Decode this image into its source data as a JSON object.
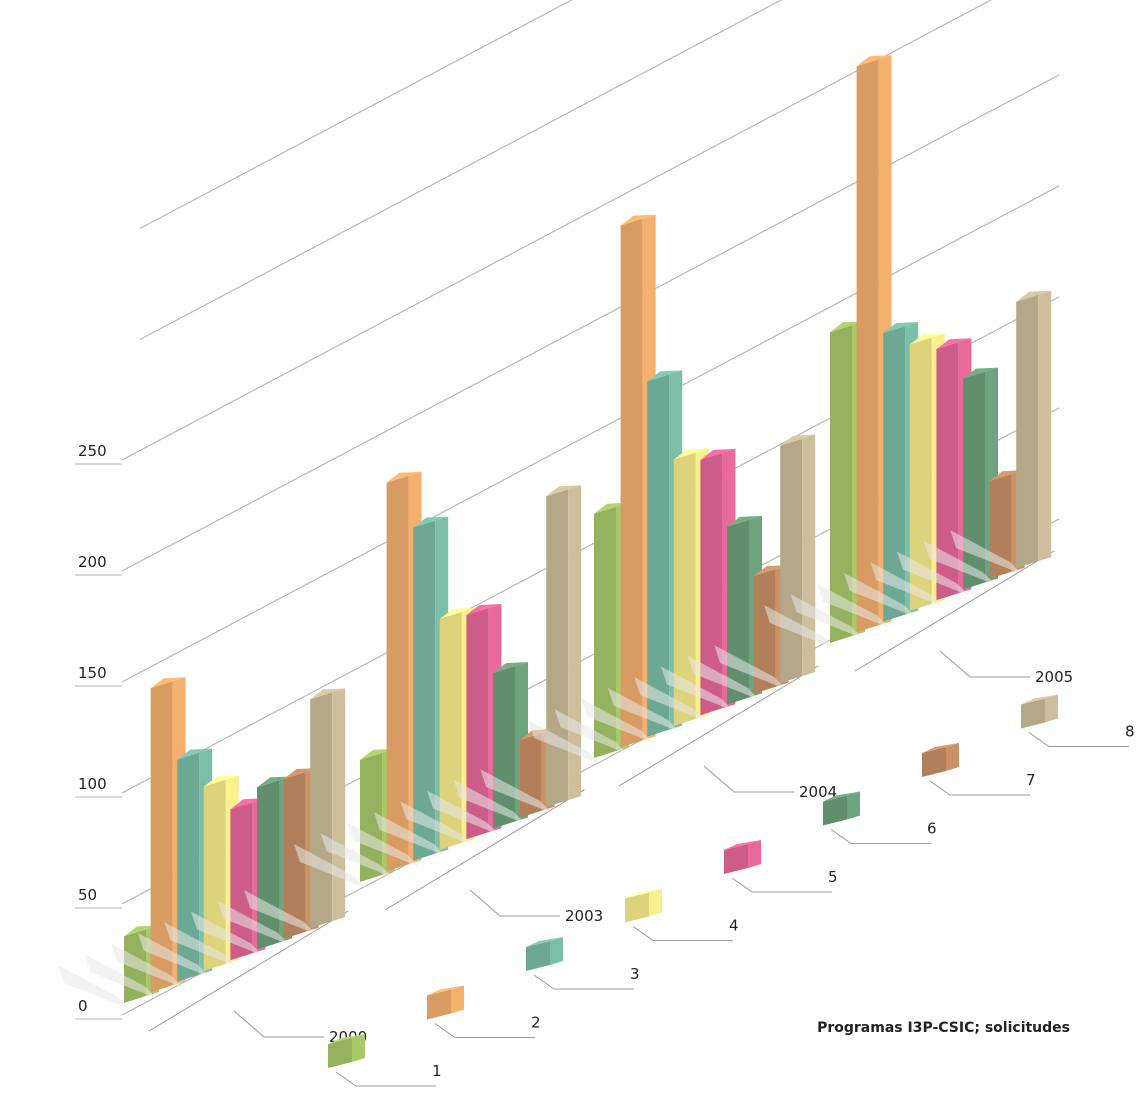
{
  "chart_data": {
    "type": "bar",
    "title": "Programas I3P-CSIC; solicitudes",
    "categories": [
      "2000",
      "2003",
      "2004",
      "2005"
    ],
    "y_ticks": [
      "0",
      "50",
      "100",
      "150",
      "200",
      "250"
    ],
    "ylim": [
      0,
      300
    ],
    "grid": true,
    "legend_position": "bottom-right",
    "series": [
      {
        "name": "1",
        "color": "#a8c96a",
        "values": [
          30,
          55,
          110,
          140
        ]
      },
      {
        "name": "2",
        "color": "#f5b06e",
        "values": [
          137,
          175,
          235,
          255
        ]
      },
      {
        "name": "3",
        "color": "#7cbfa8",
        "values": [
          100,
          150,
          160,
          130
        ]
      },
      {
        "name": "4",
        "color": "#fbf08e",
        "values": [
          83,
          104,
          120,
          120
        ]
      },
      {
        "name": "5",
        "color": "#e9699a",
        "values": [
          68,
          101,
          115,
          113
        ]
      },
      {
        "name": "6",
        "color": "#6ea37d",
        "values": [
          73,
          70,
          80,
          95
        ]
      },
      {
        "name": "7",
        "color": "#c99266",
        "values": [
          72,
          35,
          53,
          44
        ]
      },
      {
        "name": "8",
        "color": "#cdbf9b",
        "values": [
          103,
          140,
          107,
          120
        ]
      }
    ]
  }
}
